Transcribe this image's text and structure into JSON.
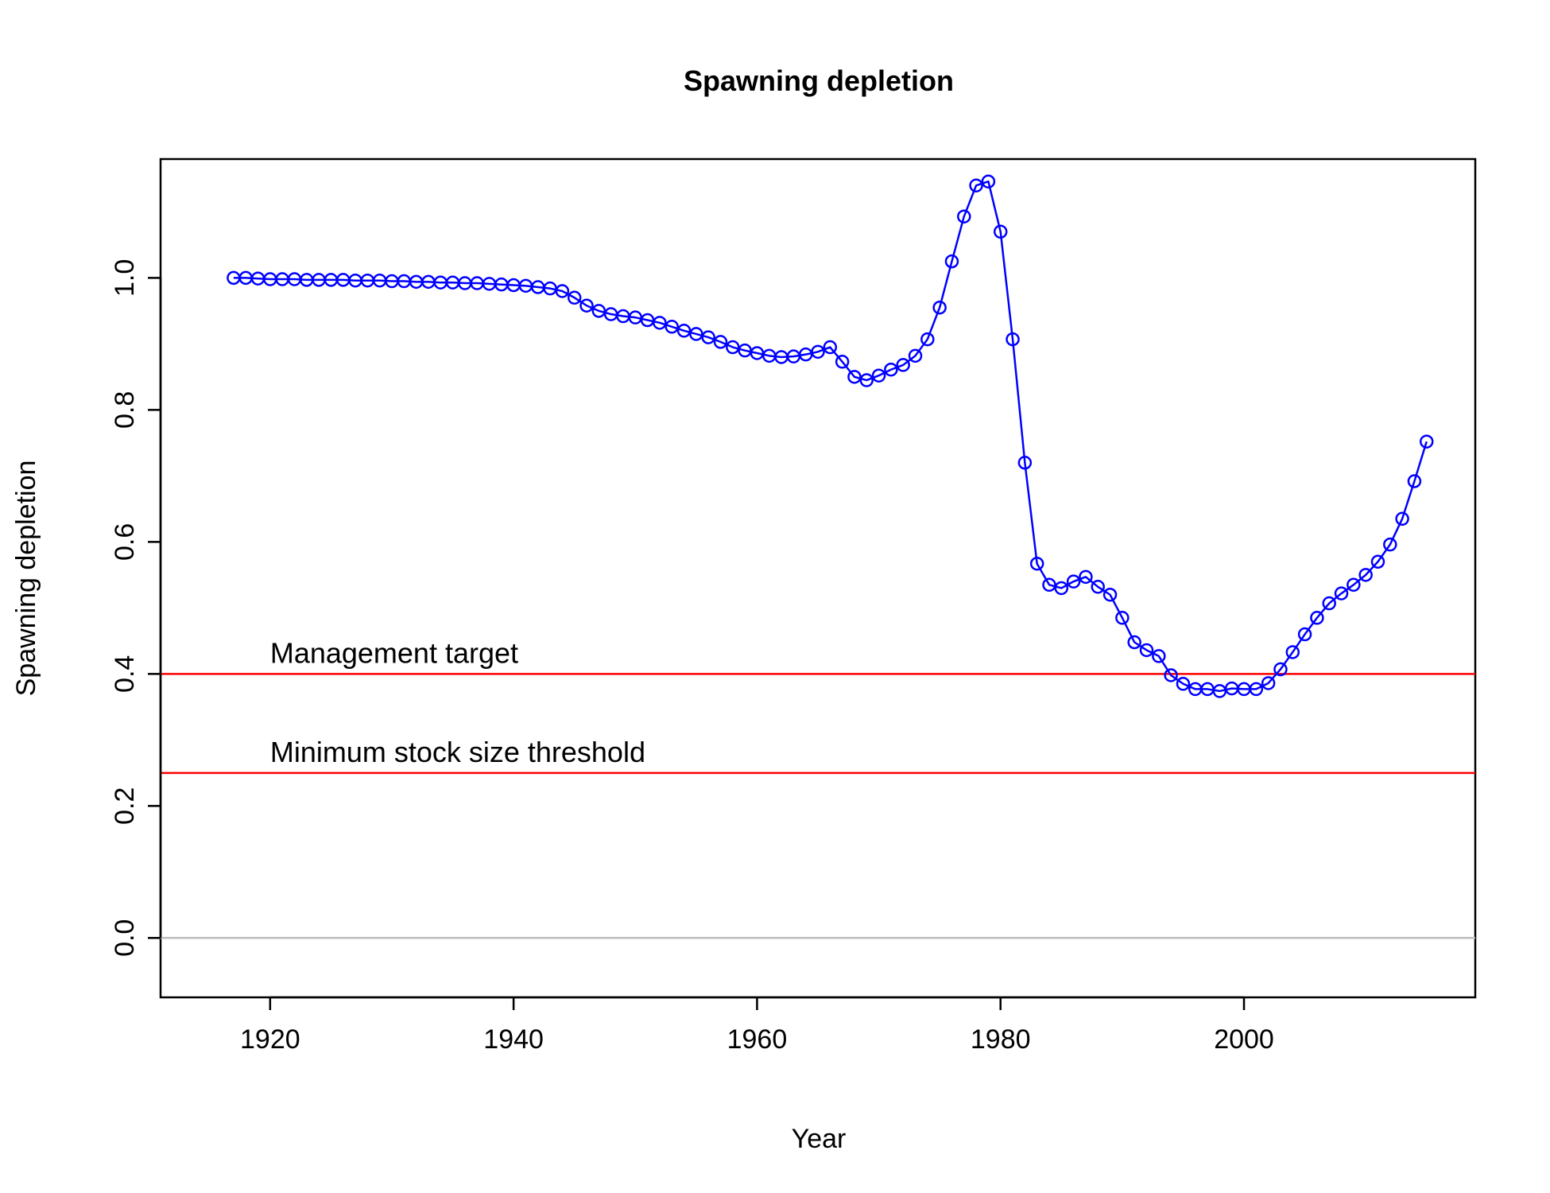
{
  "chart_data": {
    "type": "line",
    "title": "Spawning depletion",
    "xlabel": "Year",
    "ylabel": "Spawning depletion",
    "xlim": [
      1911,
      2019
    ],
    "ylim": [
      -0.09,
      1.18
    ],
    "xticks": [
      1920,
      1940,
      1960,
      1980,
      2000
    ],
    "xtick_labels": [
      "1920",
      "1940",
      "1960",
      "1980",
      "2000"
    ],
    "yticks": [
      0.0,
      0.2,
      0.4,
      0.6,
      0.8,
      1.0
    ],
    "ytick_labels": [
      "0.0",
      "0.2",
      "0.4",
      "0.6",
      "0.8",
      "1.0"
    ],
    "grid": false,
    "series": [
      {
        "color": "#0000ff",
        "marker": "open-circle",
        "x": [
          1917,
          1918,
          1919,
          1920,
          1921,
          1922,
          1923,
          1924,
          1925,
          1926,
          1927,
          1928,
          1929,
          1930,
          1931,
          1932,
          1933,
          1934,
          1935,
          1936,
          1937,
          1938,
          1939,
          1940,
          1941,
          1942,
          1943,
          1944,
          1945,
          1946,
          1947,
          1948,
          1949,
          1950,
          1951,
          1952,
          1953,
          1954,
          1955,
          1956,
          1957,
          1958,
          1959,
          1960,
          1961,
          1962,
          1963,
          1964,
          1965,
          1966,
          1967,
          1968,
          1969,
          1970,
          1971,
          1972,
          1973,
          1974,
          1975,
          1976,
          1977,
          1978,
          1979,
          1980,
          1981,
          1982,
          1983,
          1984,
          1985,
          1986,
          1987,
          1988,
          1989,
          1990,
          1991,
          1992,
          1993,
          1994,
          1995,
          1996,
          1997,
          1998,
          1999,
          2000,
          2001,
          2002,
          2003,
          2004,
          2005,
          2006,
          2007,
          2008,
          2009,
          2010,
          2011,
          2012,
          2013,
          2014,
          2015
        ],
        "y": [
          1.0,
          1.0,
          0.999,
          0.998,
          0.998,
          0.998,
          0.997,
          0.997,
          0.997,
          0.997,
          0.996,
          0.996,
          0.996,
          0.995,
          0.995,
          0.994,
          0.994,
          0.993,
          0.993,
          0.992,
          0.992,
          0.991,
          0.99,
          0.989,
          0.988,
          0.986,
          0.984,
          0.98,
          0.97,
          0.958,
          0.95,
          0.945,
          0.942,
          0.94,
          0.936,
          0.932,
          0.926,
          0.92,
          0.915,
          0.91,
          0.903,
          0.895,
          0.89,
          0.886,
          0.882,
          0.88,
          0.881,
          0.884,
          0.888,
          0.895,
          0.873,
          0.85,
          0.845,
          0.852,
          0.861,
          0.868,
          0.882,
          0.907,
          0.955,
          1.025,
          1.093,
          1.14,
          1.146,
          1.07,
          0.907,
          0.72,
          0.567,
          0.535,
          0.53,
          0.54,
          0.547,
          0.532,
          0.52,
          0.485,
          0.448,
          0.436,
          0.427,
          0.398,
          0.385,
          0.377,
          0.377,
          0.374,
          0.378,
          0.377,
          0.377,
          0.386,
          0.407,
          0.433,
          0.46,
          0.485,
          0.507,
          0.522,
          0.535,
          0.55,
          0.57,
          0.596,
          0.635,
          0.692,
          0.752
        ]
      }
    ],
    "hlines": [
      {
        "y": 0.4,
        "color": "#ff0000",
        "label": "Management target"
      },
      {
        "y": 0.25,
        "color": "#ff0000",
        "label": "Minimum stock size threshold"
      },
      {
        "y": 0.0,
        "color": "#bebebe",
        "label": ""
      }
    ]
  }
}
